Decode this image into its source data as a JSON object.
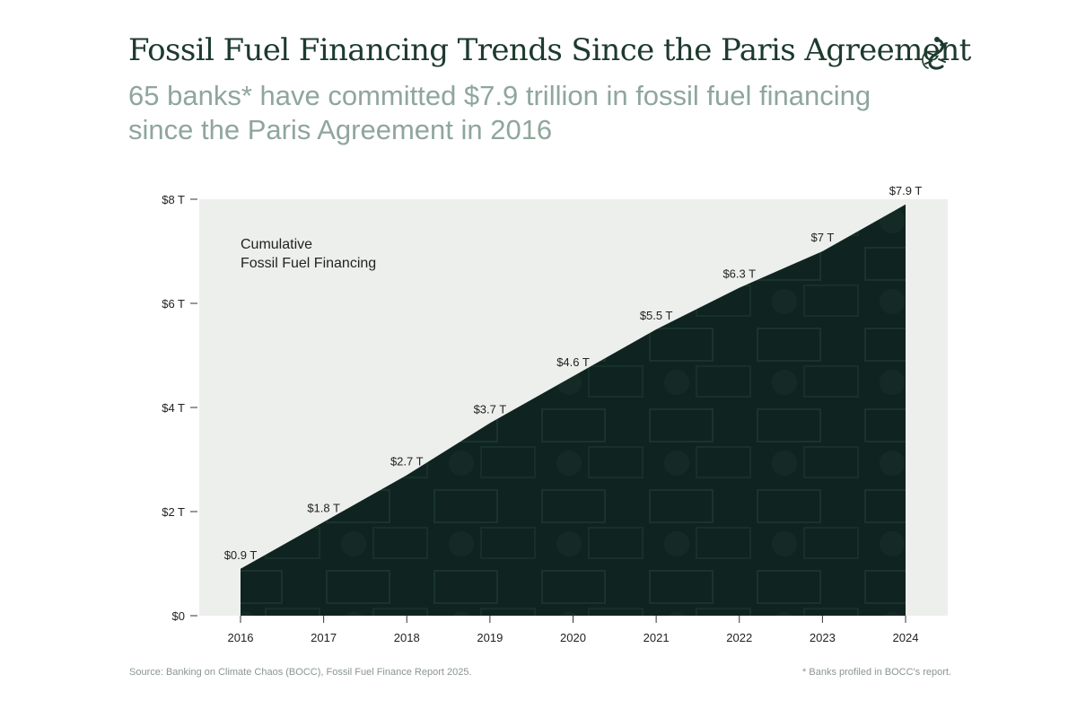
{
  "header": {
    "title": "Fossil Fuel Financing Trends Since the Paris Agreement",
    "subtitle": "65 banks* have committed $7.9 trillion in fossil fuel financing since the Paris Agreement in 2016",
    "logo_icon": "gecko-icon"
  },
  "footer": {
    "source": "Source: Banking on Climate Chaos (BOCC), Fossil Fuel Finance Report 2025.",
    "note": "* Banks profiled in BOCC's report."
  },
  "colors": {
    "plot_background": "#edefed",
    "area_fill": "#0f2420",
    "title": "#1d3a2e",
    "subtitle": "#8fa69c",
    "text": "#222222"
  },
  "chart_data": {
    "type": "area",
    "x": [
      "2016",
      "2017",
      "2018",
      "2019",
      "2020",
      "2021",
      "2022",
      "2023",
      "2024"
    ],
    "values": [
      0.9,
      1.8,
      2.7,
      3.7,
      4.6,
      5.5,
      6.3,
      7.0,
      7.9
    ],
    "data_labels": [
      "$0.9 T",
      "$1.8 T",
      "$2.7 T",
      "$3.7 T",
      "$4.6 T",
      "$5.5 T",
      "$6.3 T",
      "$7 T",
      "$7.9 T"
    ],
    "y_ticks": [
      0,
      2,
      4,
      6,
      8
    ],
    "y_tick_labels": [
      "$0",
      "$2 T",
      "$4 T",
      "$6 T",
      "$8 T"
    ],
    "ylim": [
      0,
      8
    ],
    "annotation": [
      "Cumulative",
      "Fossil Fuel Financing"
    ],
    "xlabel": "",
    "ylabel": "",
    "grid": false
  }
}
